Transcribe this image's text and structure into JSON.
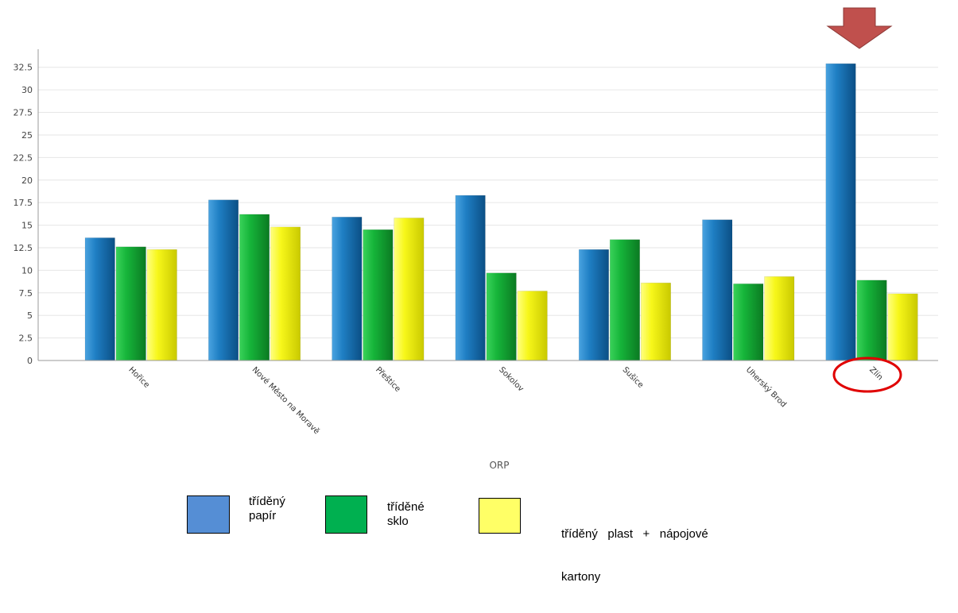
{
  "chart_data": {
    "type": "bar",
    "xlabel": "ORP",
    "ylabel": "",
    "ylim": [
      0,
      34.5
    ],
    "yticks": [
      0,
      2.5,
      5,
      7.5,
      10,
      12.5,
      15,
      17.5,
      20,
      22.5,
      25,
      27.5,
      30,
      32.5
    ],
    "ytick_labels": [
      "0",
      "2.5",
      "5",
      "7.5",
      "10",
      "12.5",
      "15",
      "17.5",
      "20",
      "22.5",
      "25",
      "27.5",
      "30",
      "32.5"
    ],
    "grid": true,
    "categories": [
      "Hořice",
      "Nové Město na Moravě",
      "Přeštice",
      "Sokolov",
      "Sušice",
      "Uherský Brod",
      "Zlín"
    ],
    "series": [
      {
        "name": "tříděný papír",
        "color": "#1f77b4",
        "values": [
          13.6,
          17.8,
          15.9,
          18.3,
          12.3,
          15.6,
          32.9
        ]
      },
      {
        "name": "tříděné sklo",
        "color": "#1aae3a",
        "values": [
          12.6,
          16.2,
          14.5,
          9.7,
          13.4,
          8.5,
          8.9
        ]
      },
      {
        "name": "tříděný plast + nápojové kartony",
        "color": "#f5f517",
        "values": [
          12.3,
          14.8,
          15.8,
          7.7,
          8.6,
          9.3,
          7.4
        ]
      }
    ],
    "highlight": {
      "category": "Zlín",
      "arrow_color": "#c0504d",
      "circle_color": "#e00000"
    }
  },
  "legend": {
    "items": [
      {
        "lines": [
          "tříděný",
          "papír"
        ],
        "color": "#558ed5"
      },
      {
        "lines": [
          "tříděné",
          "sklo"
        ],
        "color": "#00b050"
      },
      {
        "lines": [
          "tříděný   plast   +   nápojové",
          "kartony"
        ],
        "color": "#ffff66"
      }
    ]
  }
}
